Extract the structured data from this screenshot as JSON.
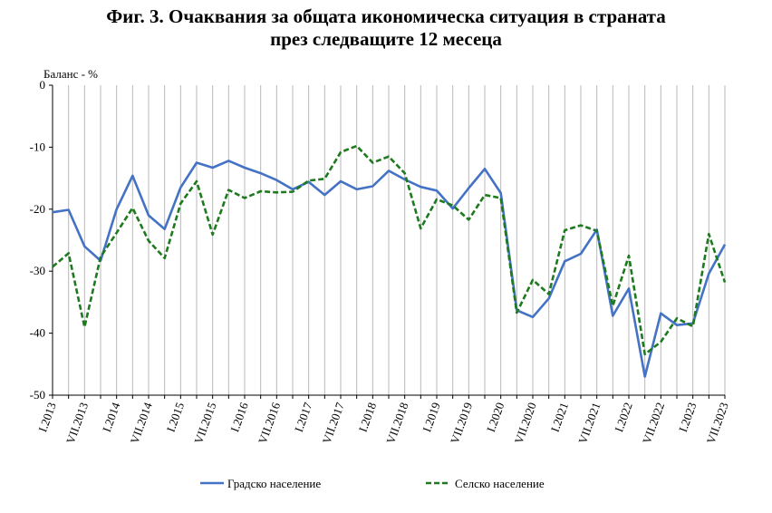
{
  "title_line1": "Фиг. 3. Очаквания за общата икономическа ситуация в страната",
  "title_line2": "през следващите 12 месеца",
  "chart_data": {
    "type": "line",
    "ylabel": "Баланс - %",
    "xlabel": "",
    "ylim": [
      -50,
      0
    ],
    "yticks": [
      0,
      -10,
      -20,
      -30,
      -40,
      -50
    ],
    "grid": "vertical",
    "legend_position": "bottom",
    "x": [
      "I.2013",
      "IV.2013",
      "VII.2013",
      "X.2013",
      "I.2014",
      "IV.2014",
      "VII.2014",
      "X.2014",
      "I.2015",
      "IV.2015",
      "VII.2015",
      "X.2015",
      "I.2016",
      "IV.2016",
      "VII.2016",
      "X.2016",
      "I.2017",
      "IV.2017",
      "VII.2017",
      "X.2017",
      "I.2018",
      "IV.2018",
      "VII.2018",
      "X.2018",
      "I.2019",
      "IV.2019",
      "VII.2019",
      "X.2019",
      "I.2020",
      "IV.2020",
      "VII.2020",
      "X.2020",
      "I.2021",
      "IV.2021",
      "VII.2021",
      "X.2021",
      "I.2022",
      "IV.2022",
      "VII.2022",
      "X.2022",
      "I.2023",
      "IV.2023",
      "VII.2023"
    ],
    "xtick_labels": [
      "I.2013",
      "VII.2013",
      "I.2014",
      "VII.2014",
      "I.2015",
      "VII.2015",
      "I.2016",
      "VII.2016",
      "I.2017",
      "VII.2017",
      "I.2018",
      "VII.2018",
      "I.2019",
      "VII.2019",
      "I.2020",
      "VII.2020",
      "I.2021",
      "VII.2021",
      "I.2022",
      "VII.2022",
      "I.2023",
      "VII.2023"
    ],
    "series": [
      {
        "name": "Градско население",
        "color": "#4472C4",
        "style": "solid",
        "values": [
          -20.5,
          -20.1,
          -26.0,
          -28.3,
          -20.0,
          -14.6,
          -21.0,
          -23.2,
          -16.5,
          -12.5,
          -13.3,
          -12.2,
          -13.3,
          -14.2,
          -15.3,
          -16.8,
          -15.6,
          -17.7,
          -15.5,
          -16.8,
          -16.3,
          -13.8,
          -15.2,
          -16.4,
          -17.0,
          -19.9,
          -16.6,
          -13.5,
          -17.4,
          -36.3,
          -37.4,
          -34.4,
          -28.4,
          -27.2,
          -23.3,
          -37.2,
          -32.8,
          -47.0,
          -36.8,
          -38.7,
          -38.4,
          -30.4,
          -25.7
        ]
      },
      {
        "name": "Селско население",
        "color": "#1E7A1E",
        "style": "dashed",
        "values": [
          -29.3,
          -27.1,
          -39.0,
          -27.7,
          -23.8,
          -19.8,
          -25.1,
          -27.9,
          -19.1,
          -15.5,
          -24.1,
          -16.9,
          -18.2,
          -17.1,
          -17.3,
          -17.2,
          -15.4,
          -15.1,
          -10.8,
          -9.8,
          -12.5,
          -11.5,
          -14.2,
          -23.1,
          -18.4,
          -19.4,
          -21.7,
          -17.7,
          -18.2,
          -36.7,
          -31.4,
          -33.7,
          -23.4,
          -22.6,
          -23.5,
          -35.6,
          -27.5,
          -43.4,
          -41.4,
          -37.6,
          -38.9,
          -24.0,
          -31.8
        ]
      }
    ]
  }
}
